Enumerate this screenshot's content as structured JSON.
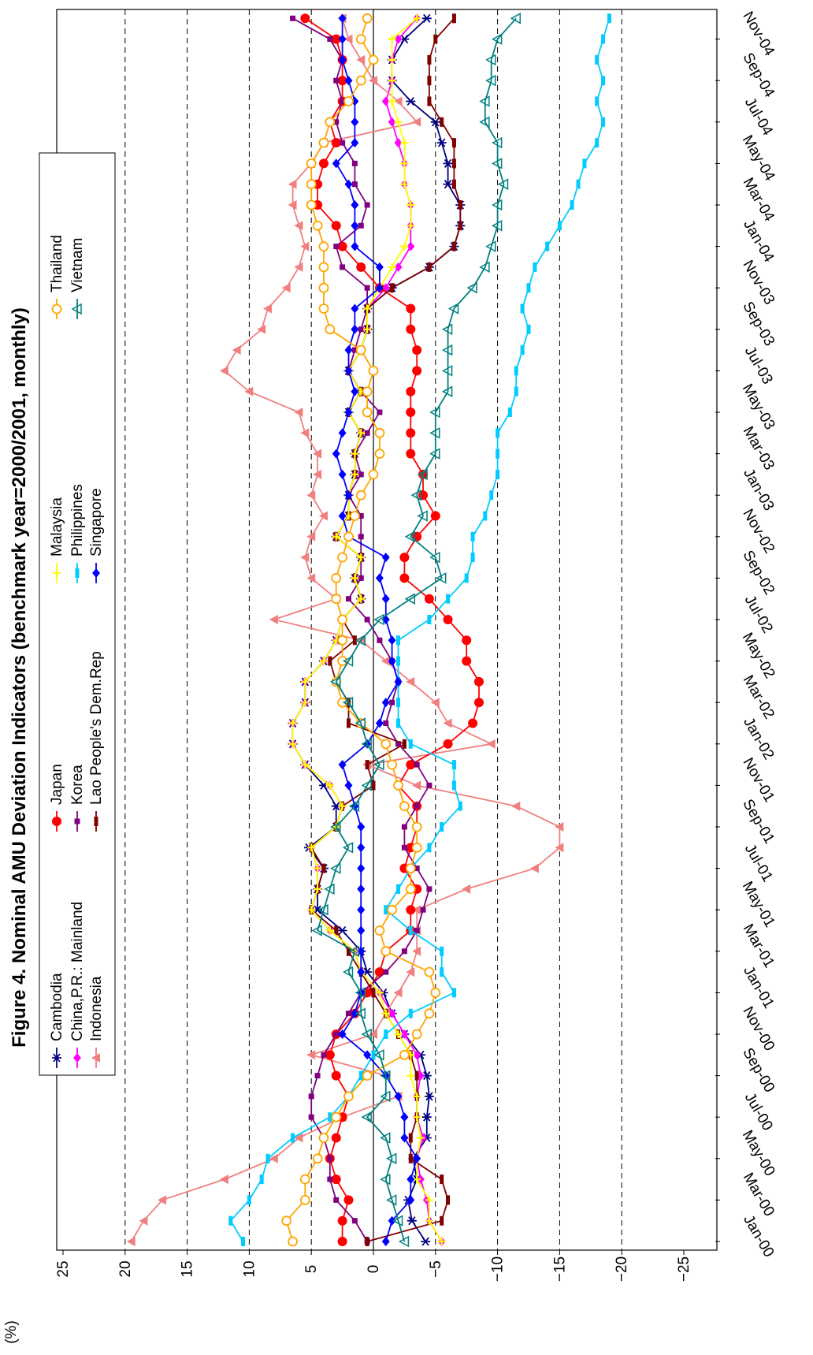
{
  "chart_data": {
    "type": "line",
    "title_prefix": "Figure 4",
    "title_rest": ". Nominal AMU Deviation Indicators (benchmark year=2000/2001, monthly)",
    "ylabel": "(%)",
    "xlabel": "",
    "ylim": [
      -25,
      25
    ],
    "y_ticks": [
      "25",
      "20",
      "15",
      "10",
      "5",
      "0",
      "−5",
      "−10",
      "−15",
      "−20",
      "−25"
    ],
    "y_tick_values": [
      25,
      20,
      15,
      10,
      5,
      0,
      -5,
      -10,
      -15,
      -20,
      -25
    ],
    "x_tick_labels": [
      "Jan-00",
      "Mar-00",
      "May-00",
      "Jul-00",
      "Sep-00",
      "Nov-00",
      "Jan-01",
      "Mar-01",
      "May-01",
      "Jul-01",
      "Sep-01",
      "Nov-01",
      "Jan-02",
      "Mar-02",
      "May-02",
      "Jul-02",
      "Sep-02",
      "Nov-02",
      "Jan-03",
      "Mar-03",
      "May-03",
      "Jul-03",
      "Sep-03",
      "Nov-03",
      "Jan-04",
      "Mar-04",
      "May-04",
      "Jul-04",
      "Sep-04",
      "Nov-04"
    ],
    "x_tick_months": [
      0,
      2,
      4,
      6,
      8,
      10,
      12,
      14,
      16,
      18,
      20,
      22,
      24,
      26,
      28,
      30,
      32,
      34,
      36,
      38,
      40,
      42,
      44,
      46,
      48,
      50,
      52,
      54,
      56,
      58
    ],
    "x_range_months": [
      -1,
      60
    ],
    "grid": "dashed-horizontal",
    "legend_position": "top",
    "series": [
      {
        "name": "Cambodia",
        "color": "#000080",
        "marker": "star",
        "values": [
          -4.2,
          -3.1,
          -2.8,
          -3.5,
          -3.2,
          -4.3,
          -4.3,
          -4.5,
          -4.3,
          -3.8,
          -2.5,
          -1.5,
          -0.8,
          0.5,
          1.0,
          2.5,
          4.5,
          4.5,
          4.0,
          5.2,
          3.0,
          3.0,
          4.0,
          5.5,
          6.5,
          6.5,
          5.5,
          5.5,
          4.0,
          3.0,
          2.5,
          1.0,
          1.5,
          1.0,
          3.0,
          2.0,
          2.0,
          1.5,
          1.5,
          1.0,
          2.0,
          1.0,
          2.0,
          1.0,
          0.5,
          0.5,
          -1.5,
          -4.5,
          -6.5,
          -7.0,
          -7.0,
          -6.0,
          -6.0,
          -5.5,
          -5.0,
          -3.0,
          -1.5,
          -1.5,
          -2.5,
          -4.3
        ]
      },
      {
        "name": "China,P.R.: Mainland",
        "color": "#ff00ff",
        "marker": "diamond",
        "values": [
          -5.5,
          -4.5,
          -4.3,
          -3.8,
          -3.5,
          -4.0,
          -3.5,
          -3.5,
          -3.8,
          -3.5,
          -2.5,
          -1.5,
          -0.5,
          1.0,
          1.5,
          3.5,
          5.0,
          4.5,
          4.5,
          5.0,
          3.0,
          2.5,
          3.5,
          5.5,
          6.5,
          6.5,
          5.5,
          5.5,
          4.0,
          3.0,
          2.5,
          1.0,
          1.5,
          1.0,
          3.0,
          2.0,
          2.0,
          1.5,
          1.5,
          1.0,
          2.0,
          1.0,
          2.0,
          1.0,
          0.5,
          0.5,
          -1.0,
          -2.0,
          -3.0,
          -3.0,
          -3.0,
          -2.5,
          -2.5,
          -2.0,
          -1.5,
          -1.0,
          -1.5,
          -1.5,
          -2.0,
          -3.5
        ]
      },
      {
        "name": "Indonesia",
        "color": "#f08080",
        "marker": "tri-left",
        "values": [
          19.5,
          18.5,
          17.0,
          12.0,
          8.0,
          6.0,
          2.5,
          -2.0,
          -1.0,
          5.0,
          0.0,
          -1.0,
          -2.0,
          -3.0,
          -3.5,
          -3.5,
          -3.5,
          -7.5,
          -13.0,
          -15.0,
          -15.0,
          -11.5,
          -3.5,
          0.5,
          -9.5,
          -6.0,
          -5.0,
          -3.0,
          -1.0,
          1.0,
          8.0,
          3.0,
          5.0,
          5.5,
          5.0,
          4.0,
          5.0,
          4.5,
          4.5,
          5.5,
          6.0,
          10.0,
          12.0,
          11.0,
          9.0,
          8.5,
          7.0,
          6.0,
          5.5,
          6.0,
          6.5,
          6.5,
          5.0,
          4.0,
          -3.5,
          -2.0,
          0.0,
          1.0,
          2.0,
          2.5
        ]
      },
      {
        "name": "Japan",
        "color": "#ff0000",
        "marker": "circle",
        "values": [
          2.5,
          2.5,
          2.0,
          3.0,
          3.5,
          3.0,
          2.5,
          2.0,
          3.0,
          3.5,
          3.0,
          1.5,
          0.5,
          -0.5,
          -1.0,
          -3.0,
          -3.0,
          -3.5,
          -2.5,
          -3.0,
          -3.5,
          -3.5,
          -2.0,
          -3.0,
          -6.0,
          -8.0,
          -8.5,
          -8.5,
          -7.5,
          -7.5,
          -6.0,
          -4.5,
          -2.5,
          -2.5,
          -3.5,
          -5.0,
          -4.0,
          -4.0,
          -3.0,
          -3.0,
          -3.0,
          -3.0,
          -3.5,
          -3.5,
          -3.0,
          -3.0,
          -0.5,
          1.0,
          2.5,
          3.0,
          4.5,
          4.5,
          4.0,
          3.0,
          3.5,
          2.5,
          2.5,
          2.5,
          3.0,
          5.5
        ]
      },
      {
        "name": "Korea",
        "color": "#800080",
        "marker": "square",
        "values": [
          0.5,
          1.5,
          3.0,
          3.5,
          3.5,
          4.0,
          5.0,
          5.0,
          4.5,
          4.0,
          3.0,
          2.0,
          1.0,
          -1.0,
          -2.5,
          -3.5,
          -4.0,
          -4.5,
          -3.5,
          -2.5,
          -2.5,
          -3.5,
          -4.5,
          -3.5,
          -2.0,
          -1.0,
          -1.5,
          -2.0,
          -1.5,
          -0.5,
          0.5,
          2.0,
          1.0,
          1.0,
          1.0,
          1.0,
          2.0,
          1.0,
          1.5,
          0.5,
          -0.5,
          1.0,
          2.0,
          1.5,
          1.0,
          0.5,
          0.5,
          2.5,
          3.0,
          1.0,
          0.5,
          1.5,
          1.5,
          2.5,
          3.0,
          2.5,
          3.0,
          2.5,
          3.5,
          6.5
        ]
      },
      {
        "name": "Lao People's Dem.Rep",
        "color": "#800000",
        "marker": "bar",
        "values": [
          0.5,
          -5.5,
          -6.0,
          -5.5,
          -3.0,
          -3.0,
          -3.5,
          -3.5,
          -3.5,
          -3.0,
          -2.0,
          -1.0,
          0.0,
          1.0,
          2.0,
          3.0,
          5.0,
          4.5,
          4.0,
          5.0,
          3.0,
          2.5,
          0.0,
          0.5,
          -2.5,
          2.0,
          2.0,
          3.0,
          3.5,
          1.5,
          2.5,
          1.0,
          1.5,
          1.0,
          3.0,
          2.0,
          2.0,
          1.5,
          1.5,
          1.0,
          2.0,
          1.0,
          2.0,
          1.0,
          0.5,
          0.5,
          -1.5,
          -4.5,
          -6.5,
          -7.0,
          -7.0,
          -6.5,
          -6.5,
          -6.5,
          -5.5,
          -4.5,
          -4.5,
          -4.5,
          -5.0,
          -6.5
        ]
      },
      {
        "name": "Malaysia",
        "color": "#ffff00",
        "marker": "plus",
        "values": [
          -5.5,
          -4.5,
          -4.5,
          -3.5,
          -3.5,
          -3.8,
          -3.5,
          -3.5,
          -3.0,
          -3.0,
          -2.0,
          -1.0,
          -0.5,
          1.0,
          1.5,
          3.5,
          5.0,
          4.5,
          4.5,
          5.0,
          3.0,
          2.5,
          3.5,
          5.5,
          6.5,
          6.5,
          5.5,
          5.5,
          4.0,
          3.0,
          2.5,
          1.0,
          1.5,
          1.0,
          3.0,
          2.0,
          2.0,
          1.5,
          1.5,
          1.0,
          2.0,
          1.0,
          2.0,
          1.0,
          0.5,
          0.5,
          -0.5,
          -1.5,
          -2.5,
          -3.0,
          -3.0,
          -2.5,
          -2.5,
          -2.5,
          -2.0,
          -1.5,
          -1.5,
          -1.5,
          -1.5,
          -3.5
        ]
      },
      {
        "name": "Philippines",
        "color": "#00ccff",
        "marker": "bar",
        "values": [
          10.5,
          11.5,
          10.0,
          9.0,
          8.5,
          6.5,
          3.5,
          2.0,
          1.0,
          0.0,
          -1.0,
          -3.0,
          -6.5,
          -5.5,
          -5.5,
          -3.0,
          -1.0,
          -2.0,
          -3.0,
          -4.5,
          -5.5,
          -7.0,
          -6.5,
          -6.5,
          -3.0,
          -2.0,
          -2.0,
          -2.0,
          -2.0,
          -2.0,
          -4.5,
          -6.0,
          -7.5,
          -8.0,
          -8.0,
          -9.0,
          -9.5,
          -10.0,
          -10.0,
          -10.0,
          -11.0,
          -11.5,
          -11.5,
          -12.0,
          -12.5,
          -12.0,
          -12.5,
          -13.0,
          -14.0,
          -15.0,
          -16.0,
          -16.5,
          -17.0,
          -18.0,
          -18.5,
          -18.0,
          -18.5,
          -18.0,
          -18.5,
          -19.0
        ]
      },
      {
        "name": "Singapore",
        "color": "#0000ff",
        "marker": "diamond",
        "values": [
          -1.0,
          -1.5,
          -3.0,
          -3.0,
          -3.5,
          -2.5,
          -2.5,
          -2.0,
          -1.0,
          0.5,
          2.5,
          1.5,
          1.0,
          1.0,
          1.0,
          1.0,
          1.0,
          1.0,
          1.0,
          1.0,
          1.0,
          1.5,
          2.0,
          2.5,
          0.5,
          -0.5,
          -1.0,
          -2.0,
          -1.5,
          -1.5,
          -1.0,
          -1.0,
          -0.5,
          -1.0,
          2.0,
          2.5,
          2.0,
          2.5,
          3.0,
          2.5,
          2.0,
          1.5,
          2.0,
          2.0,
          1.5,
          1.5,
          -0.5,
          -0.5,
          1.5,
          1.5,
          1.5,
          2.0,
          3.0,
          1.5,
          1.5,
          1.5,
          2.0,
          2.5,
          2.5,
          2.5
        ]
      },
      {
        "name": "Thailand",
        "color": "#ffa500",
        "marker": "open-circle",
        "values": [
          6.5,
          7.0,
          5.5,
          5.5,
          4.5,
          4.0,
          3.0,
          2.0,
          0.5,
          -2.5,
          -3.5,
          -4.5,
          -5.0,
          -4.5,
          -1.0,
          -0.5,
          -1.5,
          -3.0,
          -3.0,
          -3.5,
          -3.5,
          -2.5,
          -2.0,
          -1.5,
          -1.0,
          1.0,
          2.5,
          3.0,
          2.5,
          2.5,
          2.5,
          3.0,
          3.0,
          2.5,
          2.0,
          1.5,
          1.0,
          0.0,
          -0.5,
          -0.5,
          0.5,
          0.5,
          0.0,
          1.0,
          3.5,
          4.0,
          4.0,
          4.0,
          4.0,
          4.5,
          5.0,
          5.0,
          5.0,
          4.0,
          3.5,
          2.0,
          1.0,
          0.0,
          1.0,
          0.5
        ]
      },
      {
        "name": "Vietnam",
        "color": "#008080",
        "marker": "open-tri",
        "values": [
          -2.5,
          -2.0,
          -1.5,
          -1.0,
          -1.5,
          -1.0,
          0.5,
          -1.0,
          -1.0,
          -0.5,
          0.5,
          1.0,
          1.0,
          2.0,
          1.5,
          4.5,
          4.0,
          3.5,
          3.0,
          2.0,
          3.0,
          1.5,
          0.5,
          -0.5,
          0.5,
          1.0,
          2.0,
          3.0,
          2.0,
          1.0,
          -0.5,
          -3.0,
          -5.5,
          -5.0,
          -3.0,
          -4.0,
          -3.5,
          -4.0,
          -5.0,
          -5.0,
          -5.0,
          -6.0,
          -6.0,
          -6.0,
          -6.0,
          -6.5,
          -8.0,
          -9.0,
          -9.5,
          -10.0,
          -10.0,
          -10.5,
          -10.0,
          -10.0,
          -9.0,
          -9.0,
          -9.5,
          -9.5,
          -10.0,
          -11.5
        ]
      }
    ]
  }
}
